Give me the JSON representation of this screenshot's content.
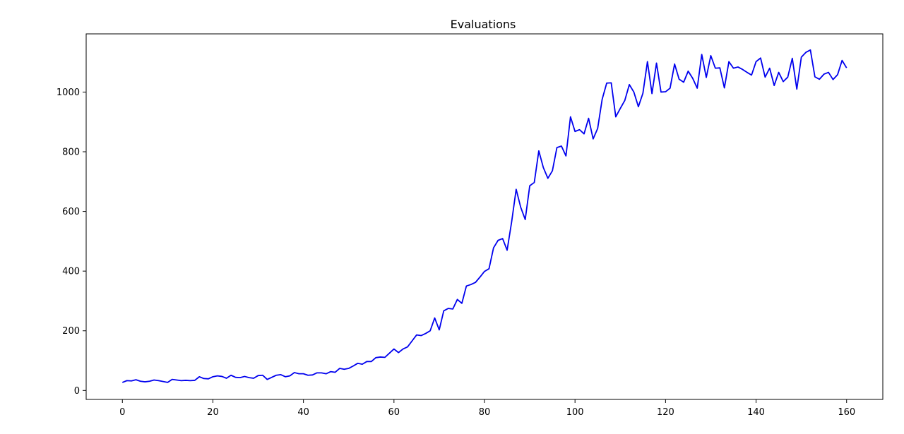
{
  "chart_data": {
    "type": "line",
    "title": "Evaluations",
    "xlabel": "",
    "ylabel": "",
    "xlim": [
      -8,
      168
    ],
    "ylim": [
      -30,
      1195
    ],
    "xticks": [
      0,
      20,
      40,
      60,
      80,
      100,
      120,
      140,
      160
    ],
    "yticks": [
      0,
      200,
      400,
      600,
      800,
      1000
    ],
    "grid": false,
    "line_color": "#0000ee",
    "series": [
      {
        "x": [
          0,
          1,
          2,
          3,
          4,
          5,
          6,
          7,
          8,
          9,
          10,
          11,
          12,
          13,
          14,
          15,
          16,
          17,
          18,
          19,
          20,
          21,
          22,
          23,
          24,
          25,
          26,
          27,
          28,
          29,
          30,
          31,
          32,
          33,
          34,
          35,
          36,
          37,
          38,
          39,
          40,
          41,
          42,
          43,
          44,
          45,
          46,
          47,
          48,
          49,
          50,
          51,
          52,
          53,
          54,
          55,
          56,
          57,
          58,
          59,
          60,
          61,
          62,
          63,
          64,
          65,
          66,
          67,
          68,
          69,
          70,
          71,
          72,
          73,
          74,
          75,
          76,
          77,
          78,
          79,
          80,
          81,
          82,
          83,
          84,
          85,
          86,
          87,
          88,
          89,
          90,
          91,
          92,
          93,
          94,
          95,
          96,
          97,
          98,
          99,
          100,
          101,
          102,
          103,
          104,
          105,
          106,
          107,
          108,
          109,
          110,
          111,
          112,
          113,
          114,
          115,
          116,
          117,
          118,
          119,
          120,
          121,
          122,
          123,
          124,
          125,
          126,
          127,
          128,
          129,
          130,
          131,
          132,
          133,
          134,
          135,
          136,
          137,
          138,
          139,
          140,
          141,
          142,
          143,
          144,
          145,
          146,
          147,
          148,
          149,
          150,
          151,
          152,
          153,
          154,
          155,
          156,
          157,
          158,
          159,
          160
        ],
        "y": [
          27,
          33,
          32,
          36,
          31,
          29,
          31,
          35,
          33,
          30,
          27,
          37,
          35,
          33,
          34,
          33,
          34,
          46,
          40,
          39,
          46,
          49,
          47,
          41,
          51,
          44,
          43,
          47,
          43,
          41,
          50,
          51,
          37,
          44,
          51,
          53,
          46,
          49,
          60,
          56,
          56,
          51,
          52,
          59,
          59,
          56,
          63,
          61,
          74,
          71,
          74,
          82,
          91,
          88,
          97,
          97,
          110,
          112,
          111,
          125,
          139,
          127,
          139,
          146,
          166,
          186,
          184,
          191,
          200,
          243,
          203,
          267,
          275,
          273,
          305,
          292,
          350,
          355,
          362,
          380,
          399,
          408,
          478,
          503,
          509,
          470,
          565,
          674,
          614,
          573,
          686,
          697,
          803,
          747,
          711,
          736,
          814,
          819,
          786,
          917,
          868,
          874,
          860,
          912,
          843,
          878,
          976,
          1030,
          1031,
          917,
          945,
          972,
          1025,
          1000,
          951,
          996,
          1102,
          995,
          1097,
          1000,
          1001,
          1013,
          1094,
          1043,
          1033,
          1070,
          1046,
          1013,
          1126,
          1049,
          1122,
          1080,
          1081,
          1014,
          1102,
          1080,
          1084,
          1076,
          1066,
          1057,
          1102,
          1114,
          1050,
          1080,
          1022,
          1066,
          1035,
          1050,
          1113,
          1010,
          1117,
          1133,
          1141,
          1051,
          1043,
          1060,
          1066,
          1042,
          1058,
          1106,
          1081
        ]
      }
    ]
  }
}
